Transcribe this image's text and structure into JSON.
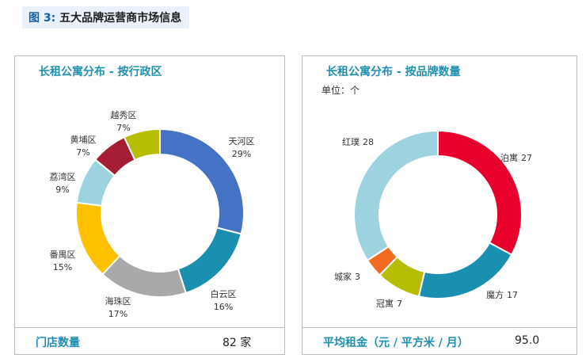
{
  "figure_title": {
    "number": "图 3:",
    "text": "五大品牌运营商市场信息"
  },
  "panels": [
    {
      "title": "长租公寓分布 - 按行政区",
      "subtitle": "",
      "footer_label": "门店数量",
      "footer_value": "82 家"
    },
    {
      "title": "长租公寓分布 - 按品牌数量",
      "subtitle": "单位：个",
      "footer_label": "平均租金（元 / 平方米 / 月）",
      "footer_value": "95.0"
    }
  ],
  "chart_data": [
    {
      "type": "pie",
      "variant": "donut",
      "title": "长租公寓分布 - 按行政区",
      "slices": [
        {
          "label": "天河区",
          "value": 29,
          "display": "29%",
          "color": "#4472c4"
        },
        {
          "label": "白云区",
          "value": 16,
          "display": "16%",
          "color": "#1b8fb0"
        },
        {
          "label": "海珠区",
          "value": 17,
          "display": "17%",
          "color": "#a9a9a9"
        },
        {
          "label": "番禺区",
          "value": 15,
          "display": "15%",
          "color": "#ffc000"
        },
        {
          "label": "荔湾区",
          "value": 9,
          "display": "9%",
          "color": "#9dd3df"
        },
        {
          "label": "黄埔区",
          "value": 7,
          "display": "7%",
          "color": "#a51d33"
        },
        {
          "label": "越秀区",
          "value": 7,
          "display": "7%",
          "color": "#b7bd00"
        }
      ]
    },
    {
      "type": "pie",
      "variant": "donut",
      "title": "长租公寓分布 - 按品牌数量",
      "unit": "单位：个",
      "slices": [
        {
          "label": "泊寓",
          "value": 27,
          "color": "#e8002d"
        },
        {
          "label": "魔方",
          "value": 17,
          "color": "#1b8fb0"
        },
        {
          "label": "冠寓",
          "value": 7,
          "color": "#b7bd00"
        },
        {
          "label": "城家",
          "value": 3,
          "color": "#f36a21"
        },
        {
          "label": "红璞",
          "value": 28,
          "color": "#9dd3df"
        }
      ]
    }
  ]
}
